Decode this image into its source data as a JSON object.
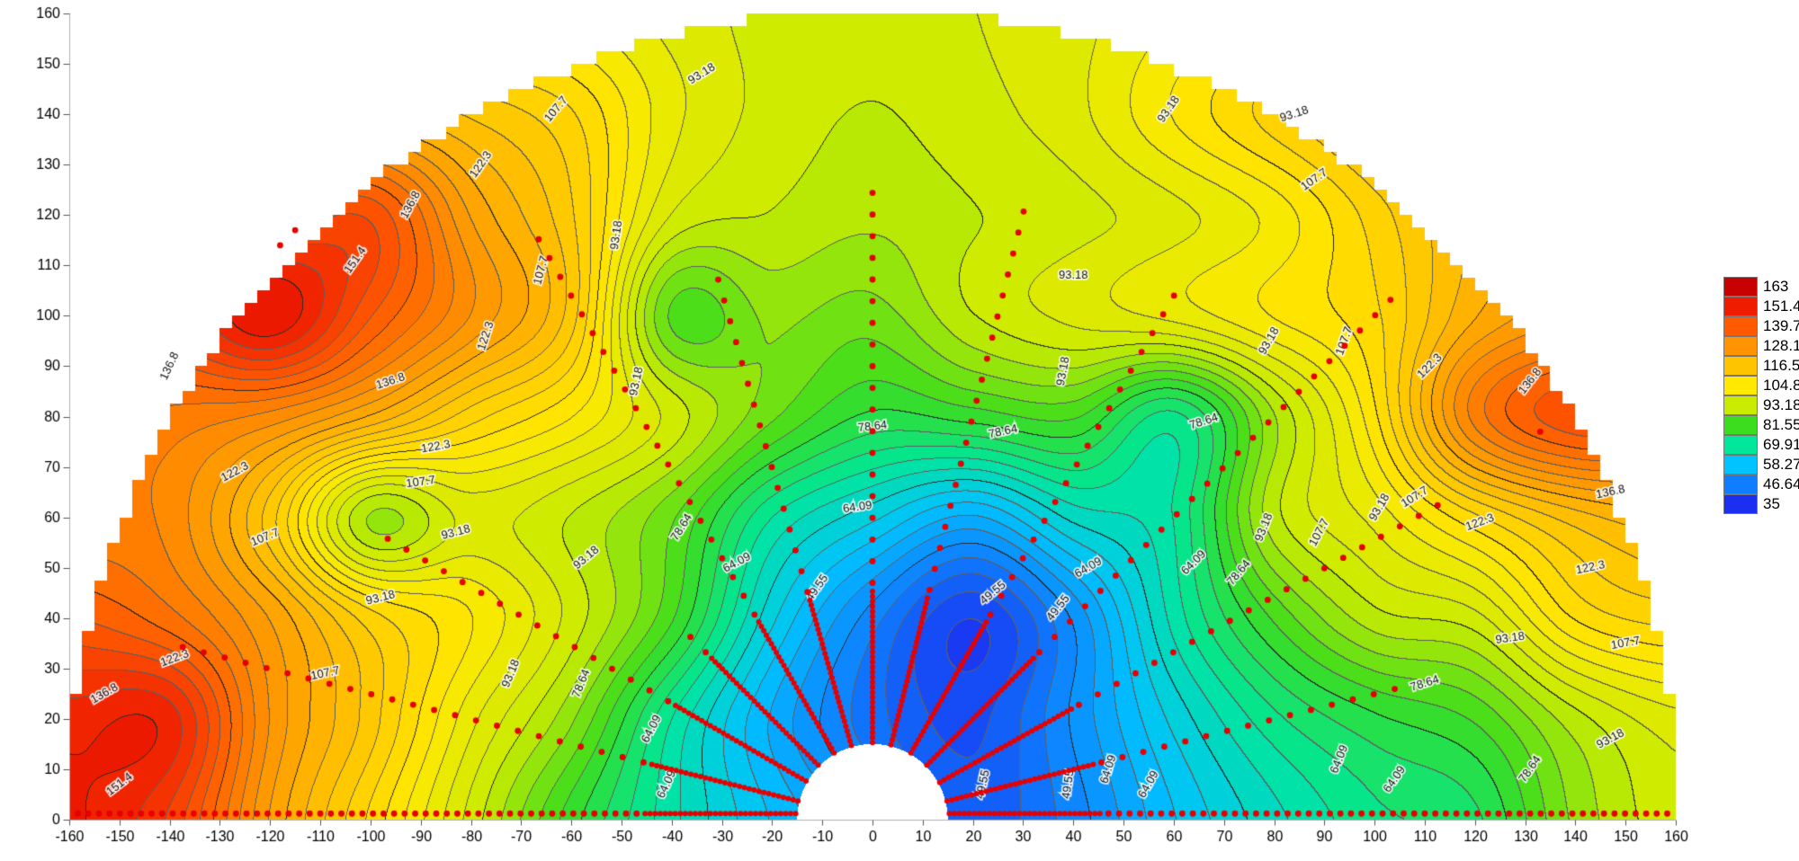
{
  "chart_data": {
    "type": "heatmap",
    "subtype": "filled-contour-semicircular-field",
    "title": "",
    "xlabel": "",
    "ylabel": "",
    "x_range": [
      -160,
      160
    ],
    "y_range": [
      0,
      160
    ],
    "domain_radius": 160,
    "inner_hole_radius": 15,
    "x_ticks": [
      -160,
      -150,
      -140,
      -130,
      -120,
      -110,
      -100,
      -90,
      -80,
      -70,
      -60,
      -50,
      -40,
      -30,
      -20,
      -10,
      0,
      10,
      20,
      30,
      40,
      50,
      60,
      70,
      80,
      90,
      100,
      110,
      120,
      130,
      140,
      150,
      160
    ],
    "y_ticks": [
      0,
      10,
      20,
      30,
      40,
      50,
      60,
      70,
      80,
      90,
      100,
      110,
      120,
      130,
      140,
      150,
      160
    ],
    "levels_min": 35,
    "levels_max": 163,
    "contour_interval": 2.909090909,
    "labeled_contour_interval": 14.54545,
    "colorbar": {
      "position": "right",
      "labels": [
        "163",
        "151.4",
        "139.7",
        "128.1",
        "116.5",
        "104.8",
        "93.18",
        "81.55",
        "69.91",
        "58.27",
        "46.64",
        "35"
      ]
    },
    "colormap_stops": [
      {
        "v": 35,
        "c": "#1a2ff0"
      },
      {
        "v": 46.64,
        "c": "#0f7dff"
      },
      {
        "v": 58.27,
        "c": "#00c3ff"
      },
      {
        "v": 69.91,
        "c": "#00e69b"
      },
      {
        "v": 81.55,
        "c": "#3cdc1e"
      },
      {
        "v": 93.18,
        "c": "#c8eb00"
      },
      {
        "v": 104.8,
        "c": "#ffe900"
      },
      {
        "v": 116.5,
        "c": "#ffc400"
      },
      {
        "v": 128.1,
        "c": "#ff9300"
      },
      {
        "v": 139.7,
        "c": "#ff5a00"
      },
      {
        "v": 151.4,
        "c": "#ef1c00"
      },
      {
        "v": 163,
        "c": "#c80000"
      }
    ],
    "grid": {
      "x0": -160,
      "dx": 20,
      "y0": 0,
      "dy": 20,
      "values": [
        [
          152,
          145,
          125,
          110,
          95,
          80,
          68,
          58,
          50,
          42,
          48,
          58,
          66,
          72,
          75,
          88,
          95
        ],
        [
          150,
          150,
          128,
          115,
          100,
          88,
          70,
          55,
          45,
          40,
          50,
          62,
          72,
          78,
          82,
          92,
          98
        ],
        [
          140,
          135,
          125,
          112,
          105,
          95,
          82,
          62,
          48,
          38,
          50,
          68,
          82,
          92,
          95,
          108,
          112
        ],
        [
          132,
          130,
          115,
          90,
          97,
          93,
          85,
          70,
          62,
          55,
          65,
          70,
          92,
          100,
          110,
          118,
          122
        ],
        [
          135,
          133,
          130,
          122,
          112,
          105,
          95,
          85,
          78,
          80,
          82,
          72,
          90,
          107,
          132,
          142,
          140
        ],
        [
          148,
          145,
          154,
          140,
          128,
          115,
          84,
          88,
          86,
          93,
          97,
          100,
          105,
          110,
          122,
          128,
          130
        ],
        [
          145,
          143,
          140,
          142,
          125,
          114,
          96,
          93,
          91,
          93,
          95,
          98,
          103,
          112,
          120,
          125,
          128
        ],
        [
          130,
          128,
          125,
          120,
          116,
          111,
          100,
          95,
          93,
          95,
          98,
          105,
          112,
          118,
          122,
          125,
          126
        ],
        [
          115,
          112,
          110,
          108,
          105,
          102,
          98,
          95,
          94,
          96,
          98,
          102,
          106,
          110,
          112,
          115,
          116
        ]
      ]
    },
    "contour_labels": [
      [
        "93.18",
        -34,
        148,
        -32
      ],
      [
        "107.7",
        -63,
        141,
        -50
      ],
      [
        "122.3",
        -78,
        130,
        -55
      ],
      [
        "136.8",
        -92,
        122,
        -62
      ],
      [
        "151.4",
        -103,
        111,
        -55
      ],
      [
        "93.18",
        -51,
        116,
        -82
      ],
      [
        "107.7",
        -66,
        109,
        -75
      ],
      [
        "122.3",
        -77,
        96,
        -72
      ],
      [
        "136.8",
        -96,
        87,
        -18
      ],
      [
        "136.8",
        -140,
        90,
        -65
      ],
      [
        "122.3",
        -87,
        74,
        -10
      ],
      [
        "107.7",
        -90,
        67,
        -8
      ],
      [
        "122.3",
        -127,
        69,
        -28
      ],
      [
        "107.7",
        -121,
        56,
        -22
      ],
      [
        "93.18",
        -83,
        57,
        -15
      ],
      [
        "93.18",
        -98,
        44,
        -14
      ],
      [
        "93.18",
        -57,
        52,
        -40
      ],
      [
        "122.3",
        -139,
        32,
        -20
      ],
      [
        "136.8",
        -153,
        25,
        -30
      ],
      [
        "151.4",
        -150,
        7,
        -38
      ],
      [
        "107.7",
        -109,
        29,
        -12
      ],
      [
        "93.18",
        -72,
        29,
        -68
      ],
      [
        "78.64",
        -58,
        27,
        -68
      ],
      [
        "64.09",
        -44,
        18,
        -62
      ],
      [
        "64.09",
        -41,
        7,
        -65
      ],
      [
        "78.64",
        -38,
        58,
        -58
      ],
      [
        "64.09",
        -27,
        51,
        -28
      ],
      [
        "93.18",
        -47,
        87,
        -78
      ],
      [
        "49.55",
        -11,
        46,
        -55
      ],
      [
        "64.09",
        -3,
        62,
        -8
      ],
      [
        "78.64",
        0,
        78,
        -6
      ],
      [
        "93.18",
        59,
        141,
        -55
      ],
      [
        "93.18",
        40,
        108,
        0
      ],
      [
        "93.18",
        38,
        89,
        -80
      ],
      [
        "78.64",
        26,
        77,
        -12
      ],
      [
        "78.64",
        66,
        79,
        -18
      ],
      [
        "64.09",
        43,
        50,
        -30
      ],
      [
        "49.55",
        24,
        45,
        -40
      ],
      [
        "49.55",
        37,
        42,
        -52
      ],
      [
        "49.55",
        22,
        7,
        -78
      ],
      [
        "49.55",
        39,
        7,
        -82
      ],
      [
        "64.09",
        47,
        10,
        -72
      ],
      [
        "64.09",
        55,
        7,
        -60
      ],
      [
        "64.09",
        104,
        8,
        -55
      ],
      [
        "78.64",
        73,
        49,
        -50
      ],
      [
        "64.09",
        64,
        51,
        -45
      ],
      [
        "93.18",
        78,
        58,
        -68
      ],
      [
        "107.7",
        89,
        57,
        -62
      ],
      [
        "93.18",
        84,
        140,
        -18
      ],
      [
        "107.7",
        88,
        127,
        -35
      ],
      [
        "93.18",
        79,
        95,
        -60
      ],
      [
        "107.7",
        94,
        95,
        -70
      ],
      [
        "122.3",
        111,
        90,
        -45
      ],
      [
        "136.8",
        131,
        87,
        -52
      ],
      [
        "136.8",
        147,
        65,
        -12
      ],
      [
        "122.3",
        143,
        50,
        -12
      ],
      [
        "107.7",
        150,
        35,
        -10
      ],
      [
        "93.18",
        127,
        36,
        -8
      ],
      [
        "93.18",
        147,
        16,
        -28
      ],
      [
        "78.64",
        131,
        10,
        -55
      ],
      [
        "78.64",
        110,
        27,
        -18
      ],
      [
        "64.09",
        93,
        12,
        -68
      ],
      [
        "122.3",
        121,
        59,
        -20
      ],
      [
        "107.7",
        108,
        64,
        -32
      ],
      [
        "93.18",
        101,
        62,
        -60
      ]
    ],
    "measurement_points": {
      "color": "#e60000",
      "r_start": 15,
      "rays": [
        {
          "angle_deg": 180,
          "r_end": 160,
          "dense": true
        },
        {
          "angle_deg": 166,
          "r_end": 142
        },
        {
          "angle_deg": 150,
          "r_end": 113
        },
        {
          "angle_deg": 135,
          "r_end": 52
        },
        {
          "angle_deg": 120,
          "r_end": 136
        },
        {
          "angle_deg": 106,
          "r_end": 113
        },
        {
          "angle_deg": 90,
          "r_end": 127
        },
        {
          "angle_deg": 76,
          "r_end": 125
        },
        {
          "angle_deg": 60,
          "r_end": 122
        },
        {
          "angle_deg": 45,
          "r_end": 148
        },
        {
          "angle_deg": 29,
          "r_end": 130
        },
        {
          "angle_deg": 14,
          "r_end": 108
        },
        {
          "angle_deg": 0,
          "r_end": 160,
          "dense": true
        }
      ],
      "extra_points": [
        [
          -118,
          114
        ],
        [
          -115,
          117
        ],
        [
          133,
          77
        ]
      ]
    },
    "style": {
      "contour_line_color": "#5f5f5f",
      "labeled_contour_line_color": "#2d2d2d",
      "axis_text_color": "#000000",
      "axis_line_color": "#b0b0b0"
    }
  }
}
